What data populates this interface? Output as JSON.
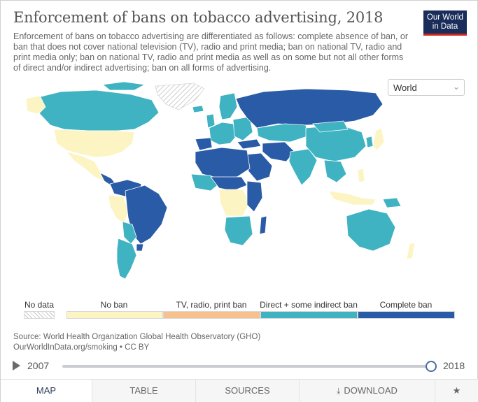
{
  "header": {
    "title": "Enforcement of bans on tobacco advertising, 2018",
    "subtitle": "Enforcement of bans on tobacco advertising are differentiated as follows: complete absence of ban, or ban that does not cover national television (TV), radio and print media; ban on national TV, radio and print media only; ban on national TV, radio and print media as well as on some but not all other forms of direct and/or indirect advertising; ban on all forms of advertising."
  },
  "logo": {
    "line1": "Our World",
    "line2": "in Data"
  },
  "region_select": {
    "value": "World"
  },
  "legend": {
    "no_data": "No data",
    "items": [
      {
        "label": "No ban",
        "color": "#fcf4c3"
      },
      {
        "label": "TV, radio, print ban",
        "color": "#f8c08c"
      },
      {
        "label": "Direct + some indirect ban",
        "color": "#3fb3c1"
      },
      {
        "label": "Complete ban",
        "color": "#2a5ba6"
      }
    ]
  },
  "source": {
    "line1": "Source: World Health Organization Global Health Observatory (GHO)",
    "line2": "OurWorldInData.org/smoking • CC BY"
  },
  "timeline": {
    "start_year": "2007",
    "end_year": "2018",
    "selected_year": "2018"
  },
  "tabs": [
    {
      "label": "MAP",
      "active": true
    },
    {
      "label": "TABLE",
      "active": false
    },
    {
      "label": "SOURCES",
      "active": false
    },
    {
      "label": "DOWNLOAD",
      "active": false
    }
  ],
  "colors": {
    "no_ban": "#fcf4c3",
    "tv_ban": "#f8c08c",
    "some_indirect": "#3fb3c1",
    "complete": "#2a5ba6",
    "ocean_border": "#ffffff"
  }
}
